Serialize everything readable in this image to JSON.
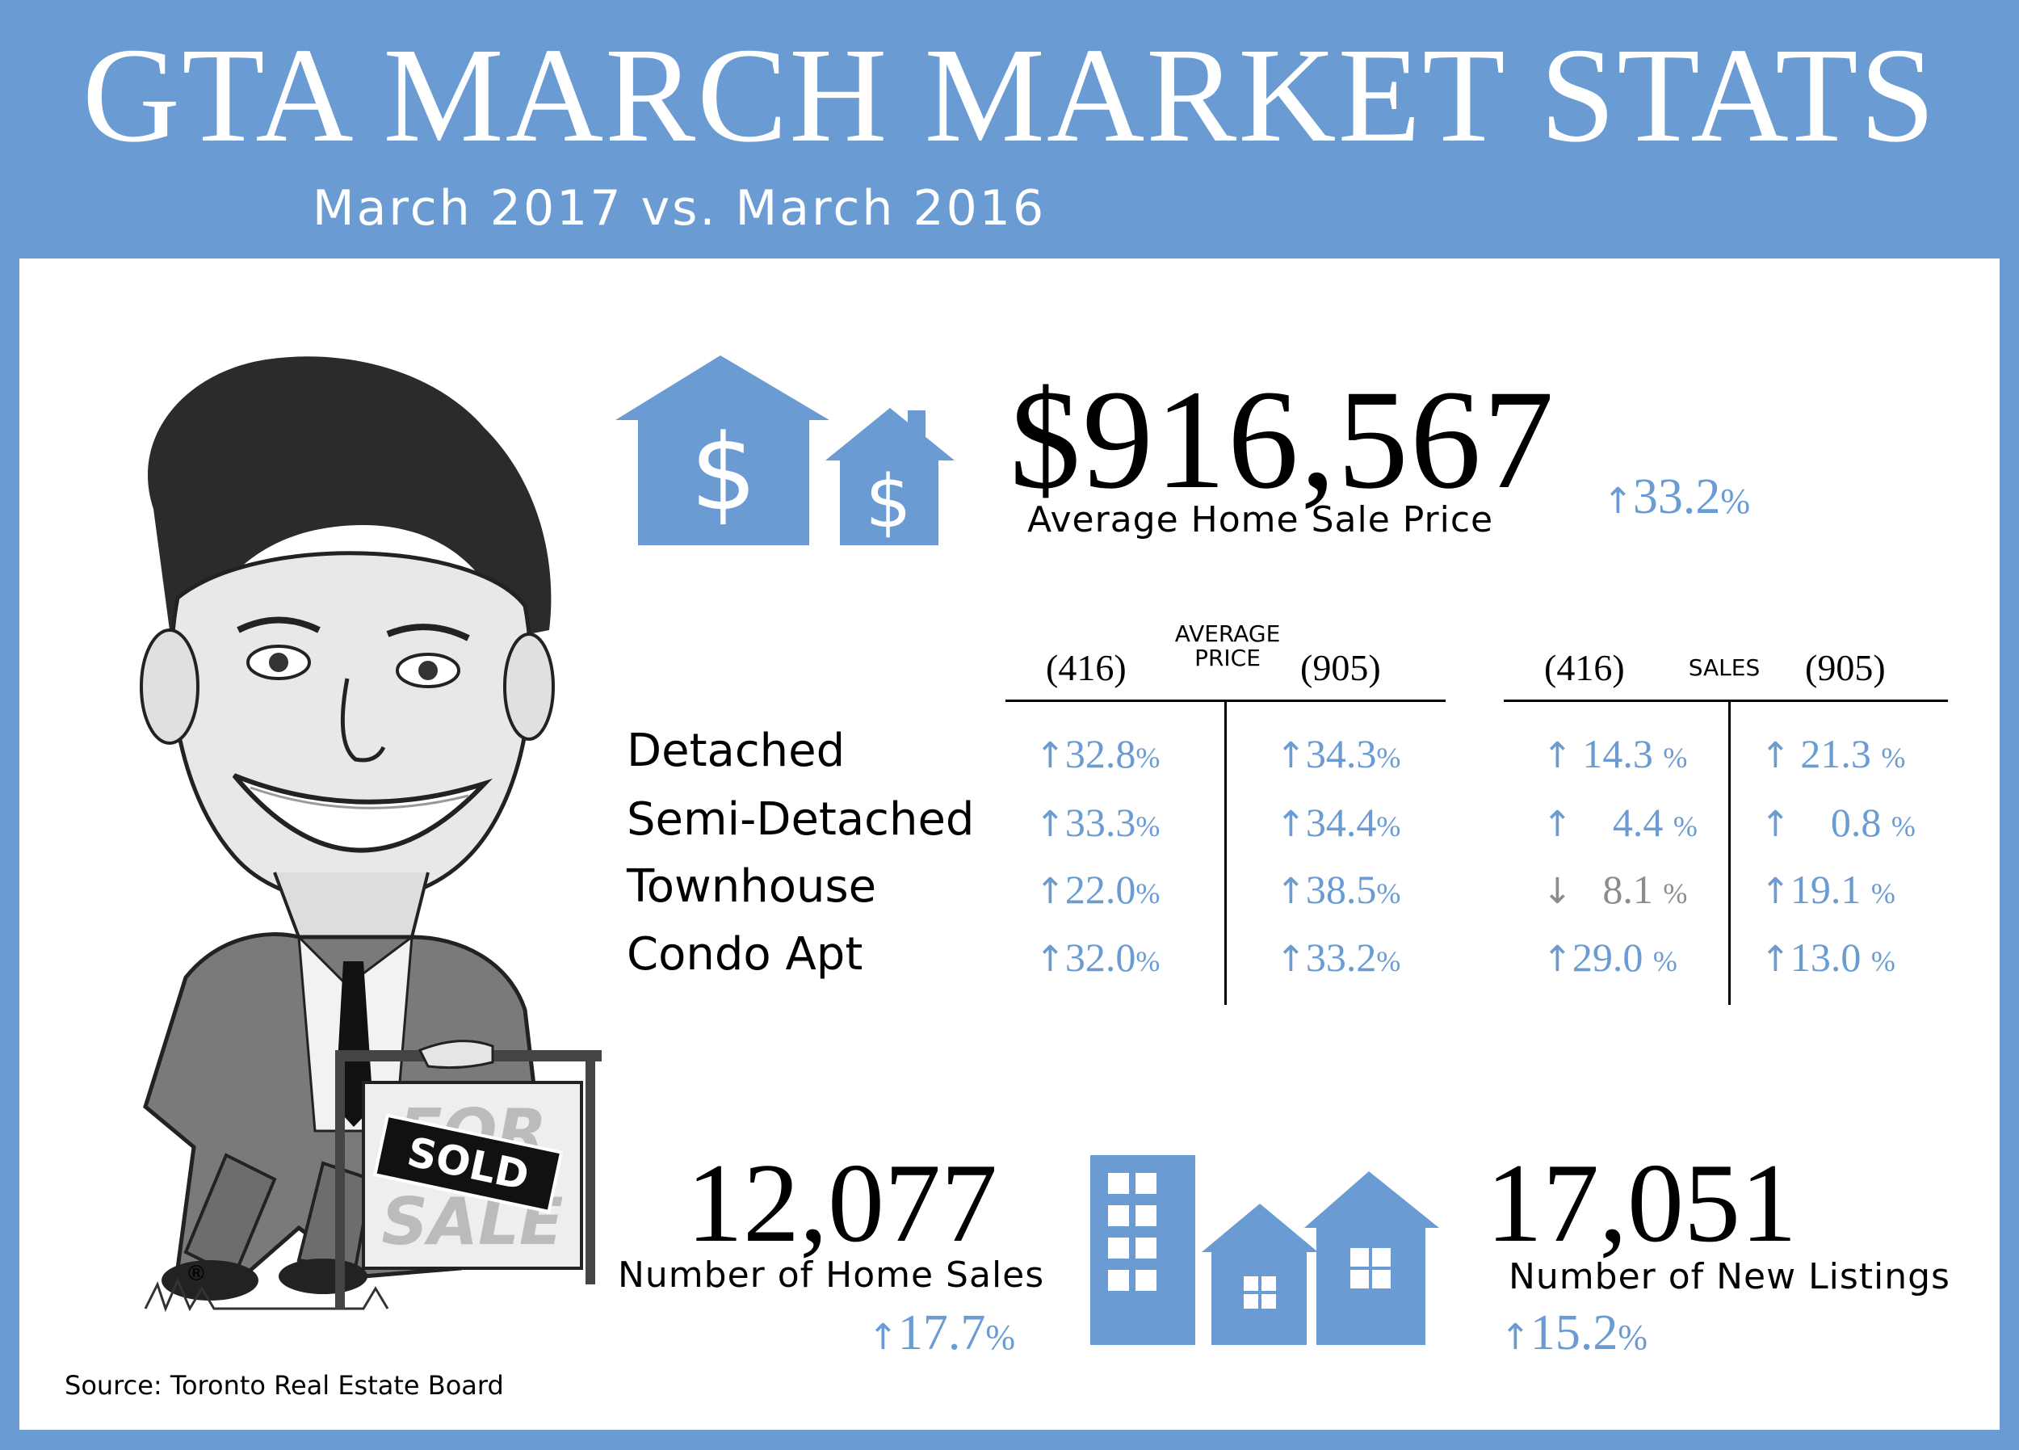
{
  "header": {
    "title": "GTA MARCH MARKET STATS",
    "subtitle": "March 2017 vs. March 2016"
  },
  "hero": {
    "price": "$916,567",
    "label": "Average Home Sale Price",
    "change_arrow": "↑",
    "change_value": "33.2",
    "change_unit": "%"
  },
  "table": {
    "average_price_header": {
      "left": "(416)",
      "middle": "AVERAGE\nPRICE",
      "right": "(905)"
    },
    "sales_header": {
      "left": "(416)",
      "middle": "SALES",
      "right": "(905)"
    },
    "rows": [
      {
        "label": "Detached",
        "avg416": {
          "arrow": "↑",
          "value": "32.8",
          "unit": "%",
          "dir": "up"
        },
        "avg905": {
          "arrow": "↑",
          "value": "34.3",
          "unit": "%",
          "dir": "up"
        },
        "sales416": {
          "arrow": "↑",
          "value": " 14.3 ",
          "unit": "%",
          "dir": "up"
        },
        "sales905": {
          "arrow": "↑",
          "value": " 21.3 ",
          "unit": "%",
          "dir": "up"
        }
      },
      {
        "label": "Semi-Detached",
        "avg416": {
          "arrow": "↑",
          "value": "33.3",
          "unit": "%",
          "dir": "up"
        },
        "avg905": {
          "arrow": "↑",
          "value": "34.4",
          "unit": "%",
          "dir": "up"
        },
        "sales416": {
          "arrow": "↑",
          "value": "    4.4 ",
          "unit": "%",
          "dir": "up"
        },
        "sales905": {
          "arrow": "↑",
          "value": "    0.8 ",
          "unit": "%",
          "dir": "up"
        }
      },
      {
        "label": "Townhouse",
        "avg416": {
          "arrow": "↑",
          "value": "22.0",
          "unit": "%",
          "dir": "up"
        },
        "avg905": {
          "arrow": "↑",
          "value": "38.5",
          "unit": "%",
          "dir": "up"
        },
        "sales416": {
          "arrow": "↓",
          "value": "   8.1 ",
          "unit": "%",
          "dir": "down"
        },
        "sales905": {
          "arrow": "↑",
          "value": "19.1 ",
          "unit": "%",
          "dir": "up"
        }
      },
      {
        "label": "Condo Apt",
        "avg416": {
          "arrow": "↑",
          "value": "32.0",
          "unit": "%",
          "dir": "up"
        },
        "avg905": {
          "arrow": "↑",
          "value": "33.2",
          "unit": "%",
          "dir": "up"
        },
        "sales416": {
          "arrow": "↑",
          "value": "29.0 ",
          "unit": "%",
          "dir": "up"
        },
        "sales905": {
          "arrow": "↑",
          "value": "13.0 ",
          "unit": "%",
          "dir": "up"
        }
      }
    ]
  },
  "home_sales": {
    "number": "12,077",
    "label": "Number of Home Sales",
    "change_arrow": "↑",
    "change_value": "17.7",
    "change_unit": "%"
  },
  "new_listings": {
    "number": "17,051",
    "label": "Number of New Listings",
    "change_arrow": "↑",
    "change_value": "15.2",
    "change_unit": "%"
  },
  "illustration": {
    "sign_top": "FOR",
    "sign_bottom": "SALE",
    "sold_badge": "SOLD",
    "trademark": "®"
  },
  "source": "Source: Toronto Real Estate Board",
  "colors": {
    "accent": "#6a9bd3",
    "text": "#000000",
    "muted": "#8c8c8c"
  },
  "icons": [
    "house-dollar-icon",
    "apartment-building-icon",
    "houses-icon",
    "caricature-illustration"
  ]
}
